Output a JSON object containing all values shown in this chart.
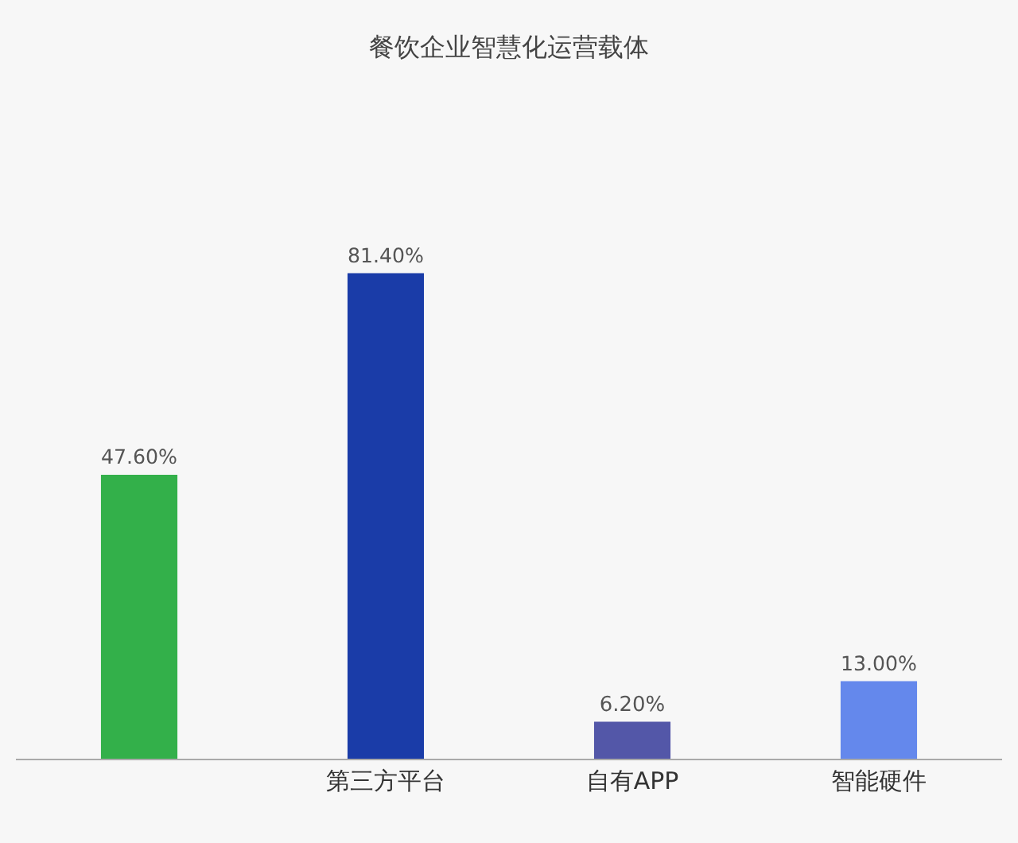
{
  "chart_data": {
    "type": "bar",
    "title": "餐饮企业智慧化运营载体",
    "categories": [
      null,
      "第三方平台",
      "自有APP",
      "智能硬件"
    ],
    "values": [
      47.6,
      81.4,
      6.2,
      13.0
    ],
    "value_labels": [
      "47.60%",
      "81.40%",
      "6.20%",
      "13.00%"
    ],
    "colors": [
      "#33b04a",
      "#1a3ca8",
      "#5357a8",
      "#6488ec"
    ]
  }
}
